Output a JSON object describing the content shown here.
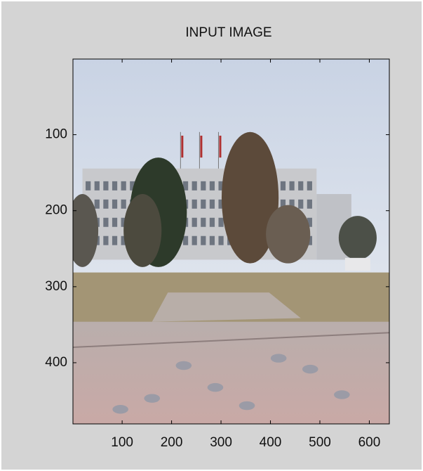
{
  "chart_data": {
    "type": "image",
    "title": "INPUT IMAGE",
    "xlim": [
      0.5,
      640.5
    ],
    "ylim": [
      0.5,
      480.5
    ],
    "y_reversed": true,
    "xticks": [
      100,
      200,
      300,
      400,
      500,
      600
    ],
    "yticks": [
      100,
      200,
      300,
      400
    ]
  }
}
